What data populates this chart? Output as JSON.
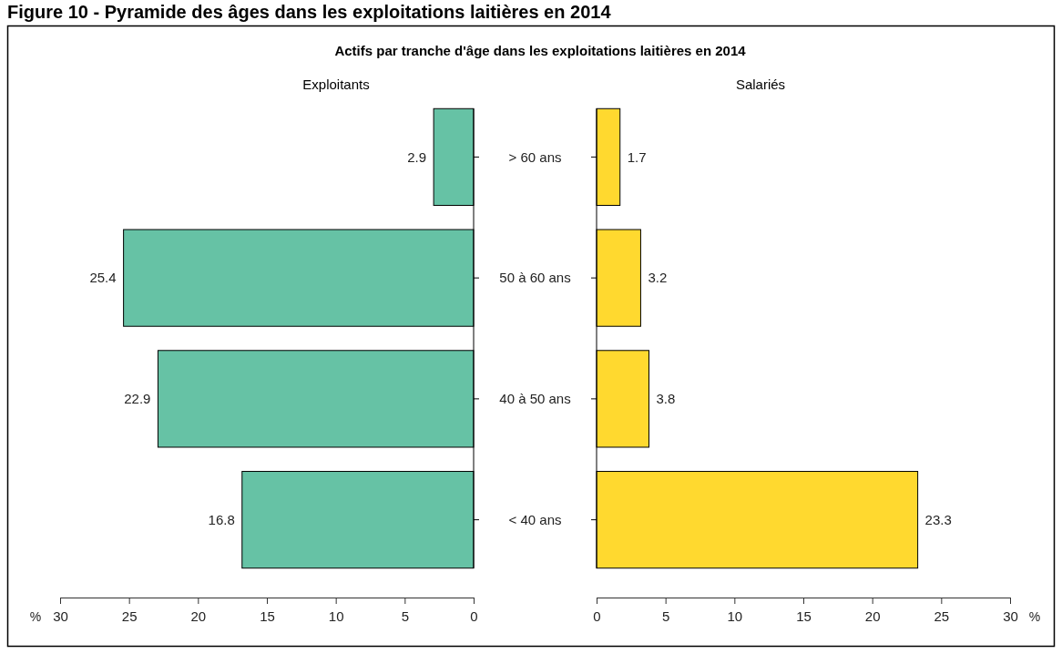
{
  "chart_data": [
    {
      "type": "other",
      "title": "Figure 10 - Pyramide des âges dans les exploitations laitières en 2014",
      "subtitle": "Actifs par tranche d'âge dans les exploitations laitières en 2014"
    },
    {
      "type": "bar",
      "orientation": "horizontal",
      "title": "Exploitants",
      "categories": [
        "> 60 ans",
        "50 à 60 ans",
        "40 à 50 ans",
        "< 40 ans"
      ],
      "values": [
        2.9,
        25.4,
        22.9,
        16.8
      ],
      "color": "#66c2a5",
      "xlim": [
        30,
        0
      ],
      "xticks": [
        30,
        25,
        20,
        15,
        10,
        5,
        0
      ],
      "xlabel": "%",
      "data_labels": true
    },
    {
      "type": "bar",
      "orientation": "horizontal",
      "title": "Salariés",
      "values": [
        1.7,
        3.2,
        3.8,
        23.3
      ],
      "color": "#ffd92f",
      "xlim": [
        0,
        30
      ],
      "xticks": [
        0,
        5,
        10,
        15,
        20,
        25,
        30
      ],
      "xlabel": "%",
      "data_labels": true
    }
  ]
}
